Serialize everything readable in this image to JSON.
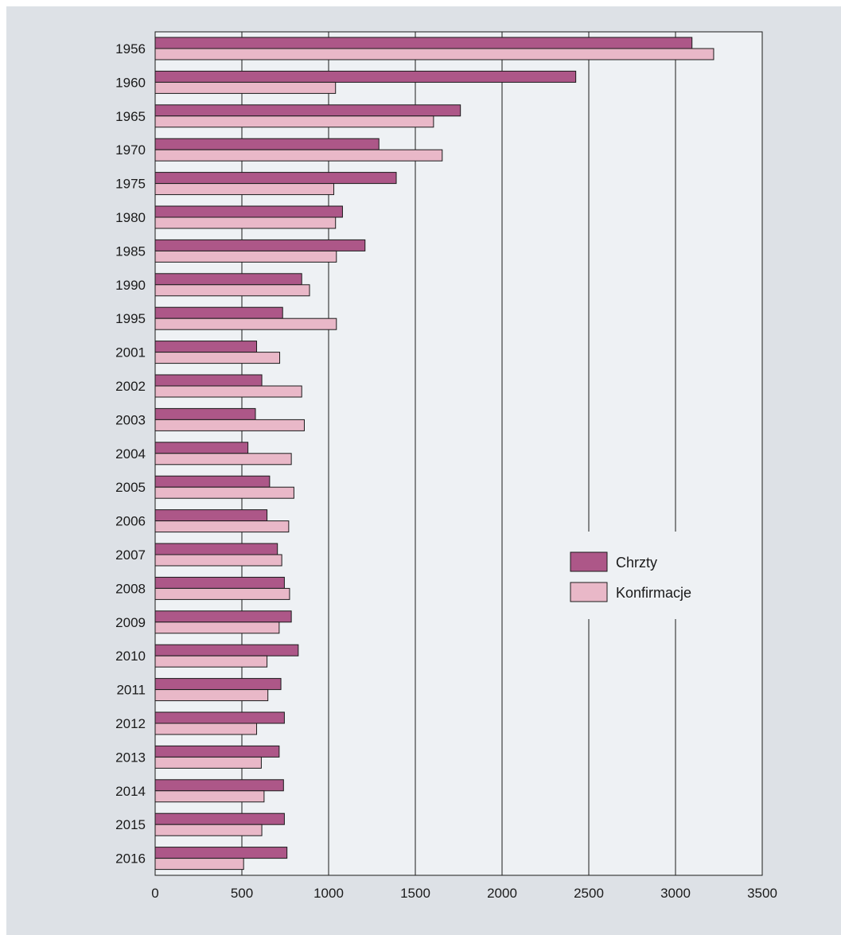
{
  "colors": {
    "background": "#dde1e6",
    "plot_background": "#eef1f4",
    "series_1": "#ad5788",
    "series_2": "#e9b8c8",
    "outline": "#1a1a1a"
  },
  "chart_data": {
    "type": "bar",
    "orientation": "horizontal",
    "title": "",
    "xlabel": "",
    "ylabel": "",
    "xlim": [
      0,
      3500
    ],
    "x_ticks": [
      "0",
      "500",
      "1000",
      "1500",
      "2000",
      "2500",
      "3000",
      "3500"
    ],
    "grid": "vertical gridlines",
    "legend_position": "right-center",
    "categories": [
      "1956",
      "1960",
      "1965",
      "1970",
      "1975",
      "1980",
      "1985",
      "1990",
      "1995",
      "2001",
      "2002",
      "2003",
      "2004",
      "2005",
      "2006",
      "2007",
      "2008",
      "2009",
      "2010",
      "2011",
      "2012",
      "2013",
      "2014",
      "2015",
      "2016"
    ],
    "series": [
      {
        "name": "Chrzty",
        "values": [
          3095,
          2425,
          1760,
          1290,
          1390,
          1080,
          1210,
          845,
          735,
          585,
          615,
          578,
          535,
          660,
          645,
          705,
          745,
          785,
          825,
          725,
          745,
          715,
          740,
          745,
          760
        ]
      },
      {
        "name": "Konfirmacje",
        "values": [
          3220,
          1040,
          1605,
          1655,
          1030,
          1040,
          1045,
          890,
          1045,
          718,
          845,
          860,
          785,
          800,
          770,
          730,
          775,
          715,
          645,
          650,
          585,
          612,
          628,
          615,
          510
        ]
      }
    ]
  }
}
